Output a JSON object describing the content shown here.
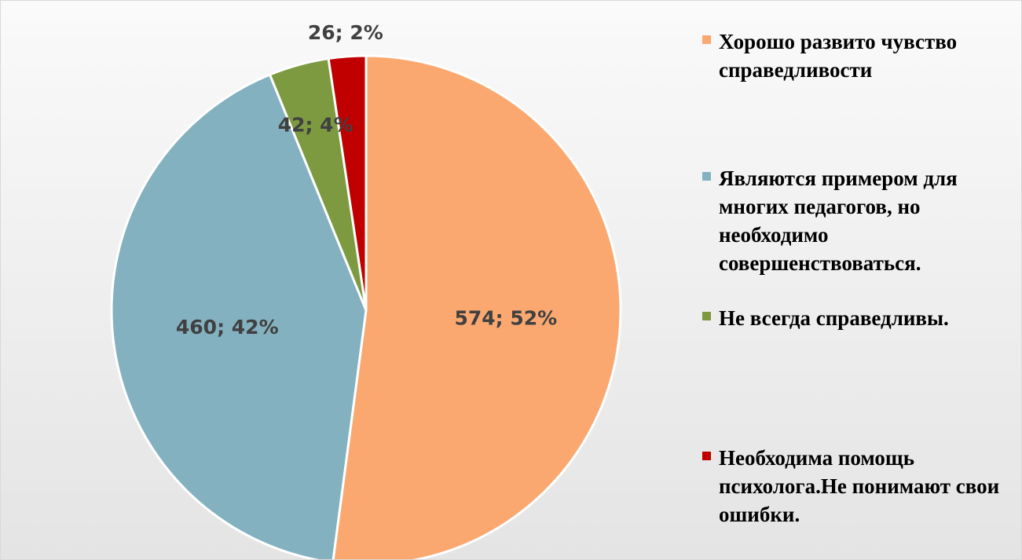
{
  "chart_data": {
    "type": "pie",
    "categories": [
      "Хорошо развито чувство справедливости",
      "Являются примером для многих педагогов, но необходимо совершенствоваться.",
      "Не всегда справедливы.",
      "Необходима помощь психолога.Не понимают свои ошибки."
    ],
    "values": [
      574,
      460,
      42,
      26
    ],
    "value_labels": [
      "574; 52%",
      "460; 42%",
      "42; 4%",
      "26; 2%"
    ],
    "colors": [
      "#fba870",
      "#83b1c0",
      "#7e9a40",
      "#c00000"
    ],
    "legend": "right"
  }
}
